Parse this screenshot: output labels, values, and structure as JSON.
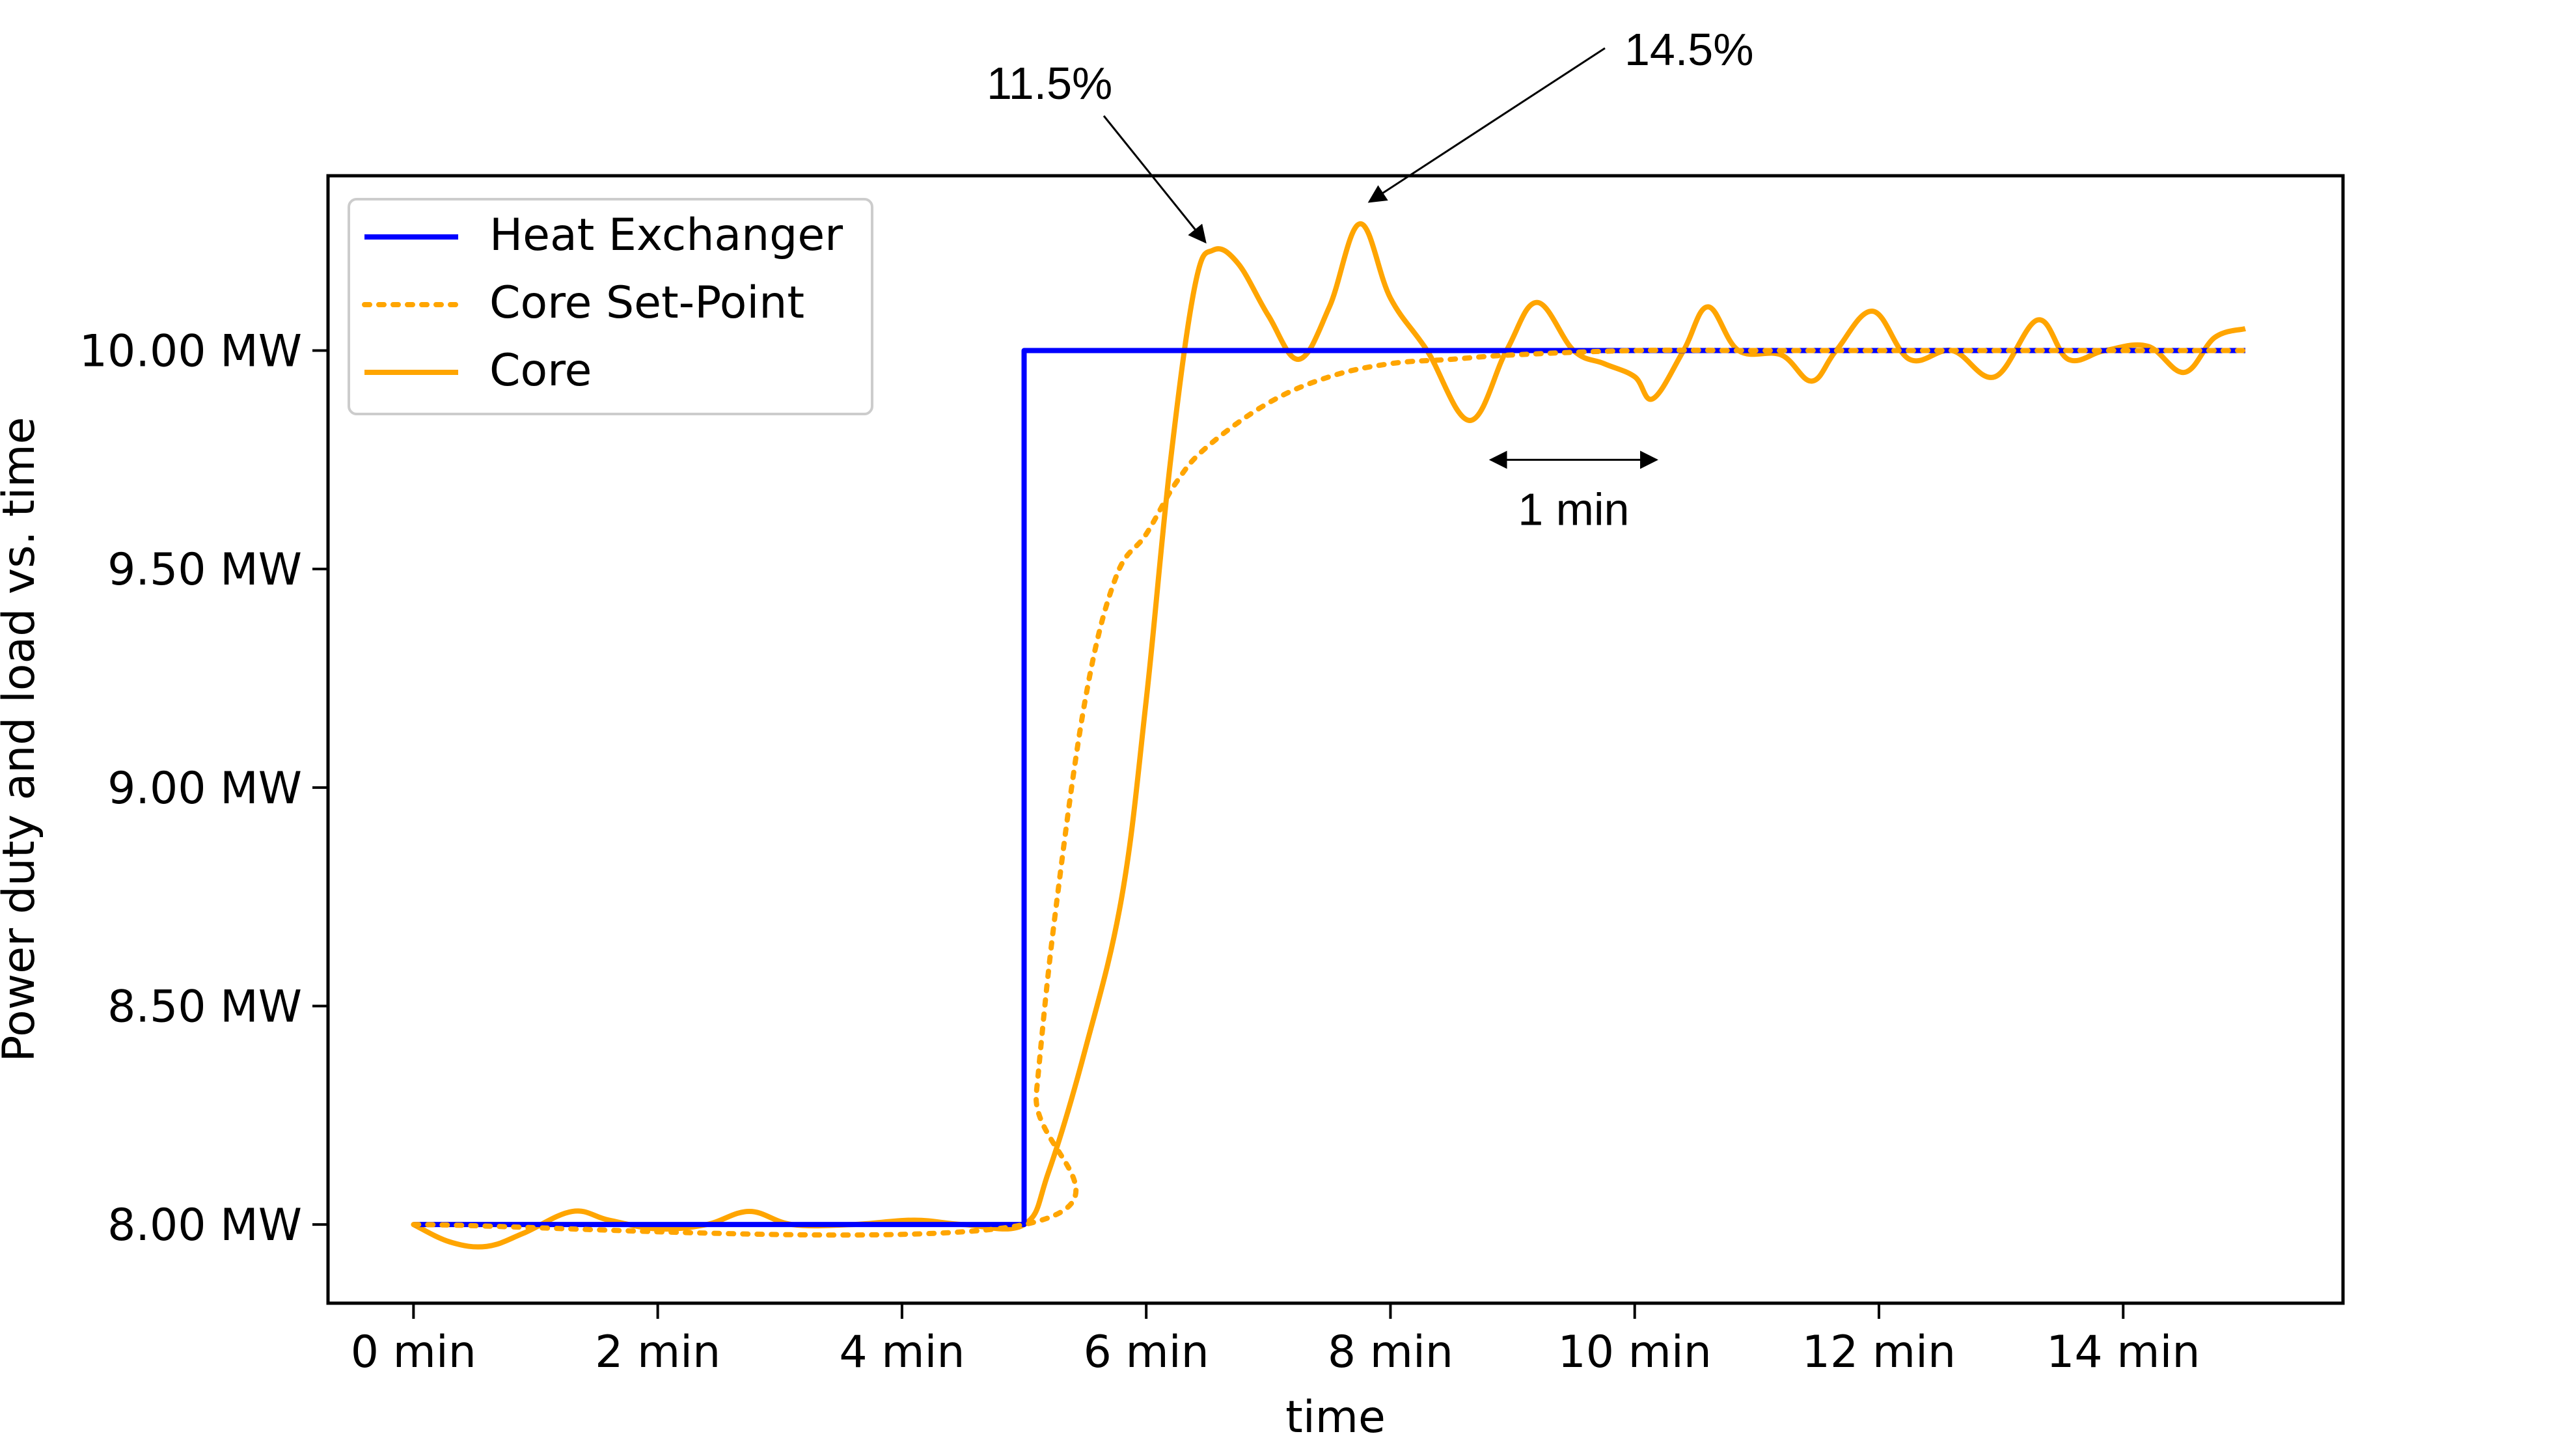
{
  "chart_data": {
    "type": "line",
    "title": "",
    "xlabel": "time",
    "ylabel": "Power duty and load vs. time",
    "xlim": [
      -0.7,
      15.8
    ],
    "ylim": [
      7.82,
      10.4
    ],
    "x_ticks": [
      {
        "value": 0,
        "label": "0 min"
      },
      {
        "value": 2,
        "label": "2 min"
      },
      {
        "value": 4,
        "label": "4 min"
      },
      {
        "value": 6,
        "label": "6 min"
      },
      {
        "value": 8,
        "label": "8 min"
      },
      {
        "value": 10,
        "label": "10 min"
      },
      {
        "value": 12,
        "label": "12 min"
      },
      {
        "value": 14,
        "label": "14 min"
      }
    ],
    "y_ticks": [
      {
        "value": 8.0,
        "label": "8.00 MW"
      },
      {
        "value": 8.5,
        "label": "8.50 MW"
      },
      {
        "value": 9.0,
        "label": "9.00 MW"
      },
      {
        "value": 9.5,
        "label": "9.50 MW"
      },
      {
        "value": 10.0,
        "label": "10.00 MW"
      }
    ],
    "grid": false,
    "legend_position": "top-left",
    "series": [
      {
        "name": "Heat Exchanger",
        "style": "solid",
        "color": "#0000ff",
        "x": [
          0,
          5,
          5,
          15
        ],
        "y": [
          8.0,
          8.0,
          10.0,
          10.0
        ]
      },
      {
        "name": "Core Set-Point",
        "style": "dotted",
        "color": "#ffa500",
        "x": [
          0,
          5,
          5.1,
          5.25,
          5.5,
          5.75,
          6.0,
          6.25,
          6.5,
          7.0,
          7.5,
          8.0,
          8.5,
          9.0,
          10.0,
          11.0,
          12.0,
          13.0,
          14.0,
          15.0
        ],
        "y": [
          8.0,
          8.0,
          8.3,
          8.7,
          9.2,
          9.48,
          9.58,
          9.7,
          9.78,
          9.88,
          9.94,
          9.97,
          9.98,
          9.99,
          10.0,
          10.0,
          10.0,
          10.0,
          10.0,
          10.0
        ]
      },
      {
        "name": "Core",
        "style": "solid",
        "color": "#ffa500",
        "x": [
          0,
          0.3,
          0.6,
          0.9,
          1.3,
          1.6,
          2.0,
          2.4,
          2.75,
          3.1,
          3.6,
          4.1,
          4.5,
          5.0,
          5.2,
          5.5,
          5.8,
          6.0,
          6.2,
          6.4,
          6.55,
          6.75,
          7.0,
          7.25,
          7.5,
          7.75,
          8.0,
          8.3,
          8.65,
          8.95,
          9.2,
          9.5,
          9.75,
          10.0,
          10.15,
          10.4,
          10.6,
          10.85,
          11.2,
          11.45,
          11.65,
          11.95,
          12.25,
          12.6,
          12.95,
          13.3,
          13.55,
          13.85,
          14.2,
          14.5,
          14.75,
          15.0
        ],
        "y": [
          8.0,
          7.96,
          7.95,
          7.98,
          8.03,
          8.01,
          7.99,
          8.0,
          8.03,
          8.0,
          8.0,
          8.01,
          8.0,
          8.0,
          8.12,
          8.4,
          8.75,
          9.2,
          9.75,
          10.15,
          10.23,
          10.2,
          10.08,
          9.98,
          10.1,
          10.29,
          10.12,
          10.0,
          9.84,
          10.0,
          10.11,
          10.0,
          9.97,
          9.94,
          9.89,
          10.0,
          10.1,
          10.0,
          9.99,
          9.93,
          10.0,
          10.09,
          9.98,
          10.0,
          9.94,
          10.07,
          9.98,
          10.0,
          10.01,
          9.95,
          10.03,
          10.05
        ]
      }
    ],
    "annotations": [
      {
        "text": "11.5%",
        "x": 6.5,
        "y": 10.24
      },
      {
        "text": "14.5%",
        "x": 7.8,
        "y": 10.34
      },
      {
        "text": "1 min",
        "x_start": 8.8,
        "x_end": 10.2,
        "y": 9.75
      }
    ]
  }
}
